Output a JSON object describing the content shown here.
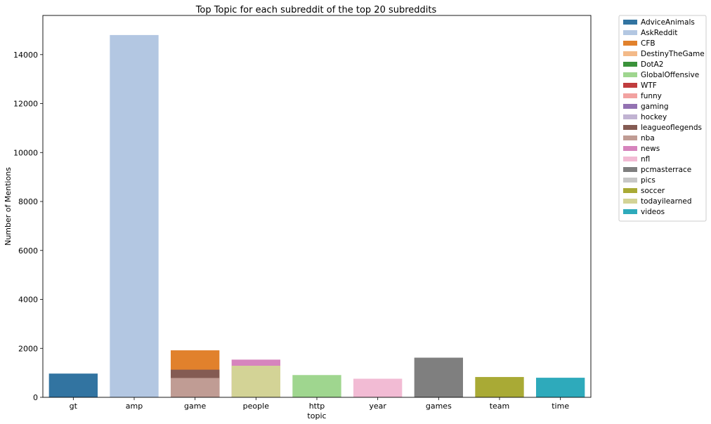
{
  "chart_data": {
    "type": "bar",
    "title": "Top Topic for each subreddit of the top 20 subreddits",
    "xlabel": "topic",
    "ylabel": "Number of Mentions",
    "ylim": [
      0,
      15600
    ],
    "yticks": [
      0,
      2000,
      4000,
      6000,
      8000,
      10000,
      12000,
      14000
    ],
    "categories": [
      "gt",
      "amp",
      "game",
      "people",
      "http",
      "year",
      "games",
      "team",
      "time"
    ],
    "legend_position": "outside-right",
    "grid": false,
    "series": [
      {
        "name": "AdviceAnimals",
        "color": "#3274a1",
        "points": [
          {
            "topic": "gt",
            "value": 970
          }
        ]
      },
      {
        "name": "AskReddit",
        "color": "#b3c7e2",
        "points": [
          {
            "topic": "amp",
            "value": 14800
          }
        ]
      },
      {
        "name": "CFB",
        "color": "#e1812c",
        "points": [
          {
            "topic": "game",
            "value": 1920
          }
        ]
      },
      {
        "name": "DestinyTheGame",
        "color": "#f3ba89",
        "points": []
      },
      {
        "name": "DotA2",
        "color": "#3a923a",
        "points": []
      },
      {
        "name": "GlobalOffensive",
        "color": "#9fd68f",
        "points": [
          {
            "topic": "http",
            "value": 910
          }
        ]
      },
      {
        "name": "WTF",
        "color": "#c03d3e",
        "points": []
      },
      {
        "name": "funny",
        "color": "#f2a2a1",
        "points": []
      },
      {
        "name": "gaming",
        "color": "#9372b2",
        "points": []
      },
      {
        "name": "hockey",
        "color": "#c1b3d2",
        "points": []
      },
      {
        "name": "leagueoflegends",
        "color": "#845b53",
        "points": [
          {
            "topic": "game",
            "value": 1130
          }
        ]
      },
      {
        "name": "nba",
        "color": "#c09c94",
        "points": [
          {
            "topic": "game",
            "value": 790
          }
        ]
      },
      {
        "name": "news",
        "color": "#d684bd",
        "points": [
          {
            "topic": "people",
            "value": 1540
          }
        ]
      },
      {
        "name": "nfl",
        "color": "#f2bbd4",
        "points": [
          {
            "topic": "year",
            "value": 760
          }
        ]
      },
      {
        "name": "pcmasterrace",
        "color": "#7f7f7f",
        "points": [
          {
            "topic": "games",
            "value": 1620
          }
        ]
      },
      {
        "name": "pics",
        "color": "#c7c7c7",
        "points": []
      },
      {
        "name": "soccer",
        "color": "#a9aa35",
        "points": [
          {
            "topic": "team",
            "value": 830
          }
        ]
      },
      {
        "name": "todayilearned",
        "color": "#d3d396",
        "points": [
          {
            "topic": "people",
            "value": 1290
          }
        ]
      },
      {
        "name": "videos",
        "color": "#2eaabb",
        "points": [
          {
            "topic": "time",
            "value": 800
          }
        ]
      }
    ]
  }
}
